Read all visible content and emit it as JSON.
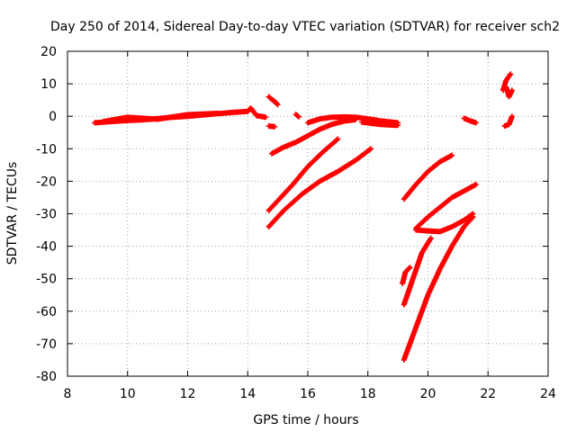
{
  "chart_data": {
    "type": "scatter",
    "title": "Day 250 of 2014, Sidereal Day-to-day VTEC variation (SDTVAR) for receiver sch2",
    "xlabel": "GPS time / hours",
    "ylabel": "SDTVAR / TECUs",
    "xlim": [
      8,
      24
    ],
    "ylim": [
      -80,
      20
    ],
    "xticks": [
      8,
      10,
      12,
      14,
      16,
      18,
      20,
      22,
      24
    ],
    "xtick_labels": [
      "8",
      "10",
      "12",
      "14",
      "16",
      "18",
      "20",
      "22",
      "24"
    ],
    "yticks": [
      -80,
      -70,
      -60,
      -50,
      -40,
      -30,
      -20,
      -10,
      0,
      10,
      20
    ],
    "ytick_labels": [
      "-80",
      "-70",
      "-60",
      "-50",
      "-40",
      "-30",
      "-20",
      "-10",
      "0",
      "10",
      "20"
    ],
    "grid": true,
    "marker": "plus",
    "color": "#ff0000",
    "series": [
      {
        "points": [
          [
            8.9,
            -2
          ],
          [
            9.5,
            -1.6
          ],
          [
            10,
            -1.3
          ],
          [
            10.5,
            -1.1
          ],
          [
            11,
            -0.7
          ],
          [
            11.5,
            -0.3
          ],
          [
            12,
            0
          ],
          [
            12.5,
            0.4
          ],
          [
            13,
            0.8
          ],
          [
            13.5,
            1.2
          ],
          [
            14,
            1.5
          ],
          [
            14.1,
            2.5
          ],
          [
            14.3,
            0.2
          ],
          [
            14.6,
            -0.3
          ]
        ]
      },
      {
        "points": [
          [
            9.2,
            -1.6
          ],
          [
            10,
            -0.3
          ],
          [
            11,
            -0.9
          ],
          [
            12,
            0.5
          ],
          [
            13,
            0.9
          ]
        ]
      },
      {
        "points": [
          [
            14.7,
            6
          ],
          [
            14.9,
            4.5
          ],
          [
            15,
            3.6
          ]
        ]
      },
      {
        "points": [
          [
            14.7,
            -3
          ],
          [
            14.9,
            -3.2
          ]
        ]
      },
      {
        "points": [
          [
            15.6,
            0.6
          ],
          [
            15.7,
            -0.2
          ]
        ]
      },
      {
        "points": [
          [
            16,
            -2
          ],
          [
            16.4,
            -0.8
          ],
          [
            16.8,
            -0.3
          ],
          [
            17.2,
            -0.2
          ],
          [
            17.6,
            -0.3
          ],
          [
            18,
            -0.8
          ],
          [
            18.3,
            -1.2
          ]
        ]
      },
      {
        "points": [
          [
            18,
            -1
          ],
          [
            18.5,
            -1.5
          ],
          [
            19,
            -2
          ]
        ]
      },
      {
        "points": [
          [
            17.8,
            -1.8
          ],
          [
            18.4,
            -2.5
          ],
          [
            19,
            -2.8
          ]
        ]
      },
      {
        "points": [
          [
            14.8,
            -11.5
          ],
          [
            15.2,
            -9.5
          ],
          [
            15.6,
            -8
          ],
          [
            16,
            -6
          ],
          [
            16.4,
            -4
          ],
          [
            16.8,
            -2.5
          ],
          [
            17.2,
            -1.5
          ],
          [
            17.6,
            -1
          ]
        ]
      },
      {
        "points": [
          [
            14.7,
            -29
          ],
          [
            15,
            -26
          ],
          [
            15.5,
            -21
          ],
          [
            16,
            -15.5
          ],
          [
            16.5,
            -11
          ],
          [
            17,
            -7
          ]
        ]
      },
      {
        "points": [
          [
            14.7,
            -34
          ],
          [
            15.2,
            -29
          ],
          [
            15.8,
            -24
          ],
          [
            16.4,
            -20
          ],
          [
            17,
            -17
          ],
          [
            17.6,
            -13.5
          ],
          [
            18.1,
            -10
          ]
        ]
      },
      {
        "points": [
          [
            19.2,
            -25.5
          ],
          [
            19.6,
            -21
          ],
          [
            20,
            -17
          ],
          [
            20.4,
            -14
          ],
          [
            20.8,
            -12
          ]
        ]
      },
      {
        "points": [
          [
            19.6,
            -34.5
          ],
          [
            20,
            -31
          ],
          [
            20.4,
            -28
          ],
          [
            20.8,
            -25
          ],
          [
            21.2,
            -23
          ],
          [
            21.6,
            -21
          ]
        ]
      },
      {
        "points": [
          [
            19.6,
            -35
          ],
          [
            20,
            -35.3
          ],
          [
            20.4,
            -35.5
          ],
          [
            20.8,
            -34
          ],
          [
            21.2,
            -32
          ],
          [
            21.5,
            -30
          ]
        ]
      },
      {
        "points": [
          [
            19.15,
            -51.5
          ],
          [
            19.25,
            -48
          ],
          [
            19.4,
            -46.5
          ]
        ]
      },
      {
        "points": [
          [
            19.2,
            -58
          ],
          [
            19.5,
            -50
          ],
          [
            19.8,
            -42
          ],
          [
            20.1,
            -37.5
          ]
        ]
      },
      {
        "points": [
          [
            19.2,
            -75
          ],
          [
            19.6,
            -65
          ],
          [
            20.0,
            -55
          ],
          [
            20.4,
            -47
          ],
          [
            20.8,
            -40
          ],
          [
            21.2,
            -34
          ],
          [
            21.5,
            -31
          ]
        ]
      },
      {
        "points": [
          [
            21.2,
            -0.6
          ],
          [
            21.4,
            -1.4
          ],
          [
            21.6,
            -2
          ]
        ]
      },
      {
        "points": [
          [
            22.5,
            8
          ],
          [
            22.6,
            11
          ],
          [
            22.75,
            13
          ]
        ]
      },
      {
        "points": [
          [
            22.6,
            9
          ],
          [
            22.7,
            6
          ],
          [
            22.8,
            8
          ]
        ]
      },
      {
        "points": [
          [
            22.55,
            -3
          ],
          [
            22.7,
            -2.5
          ],
          [
            22.8,
            0
          ]
        ]
      }
    ]
  }
}
